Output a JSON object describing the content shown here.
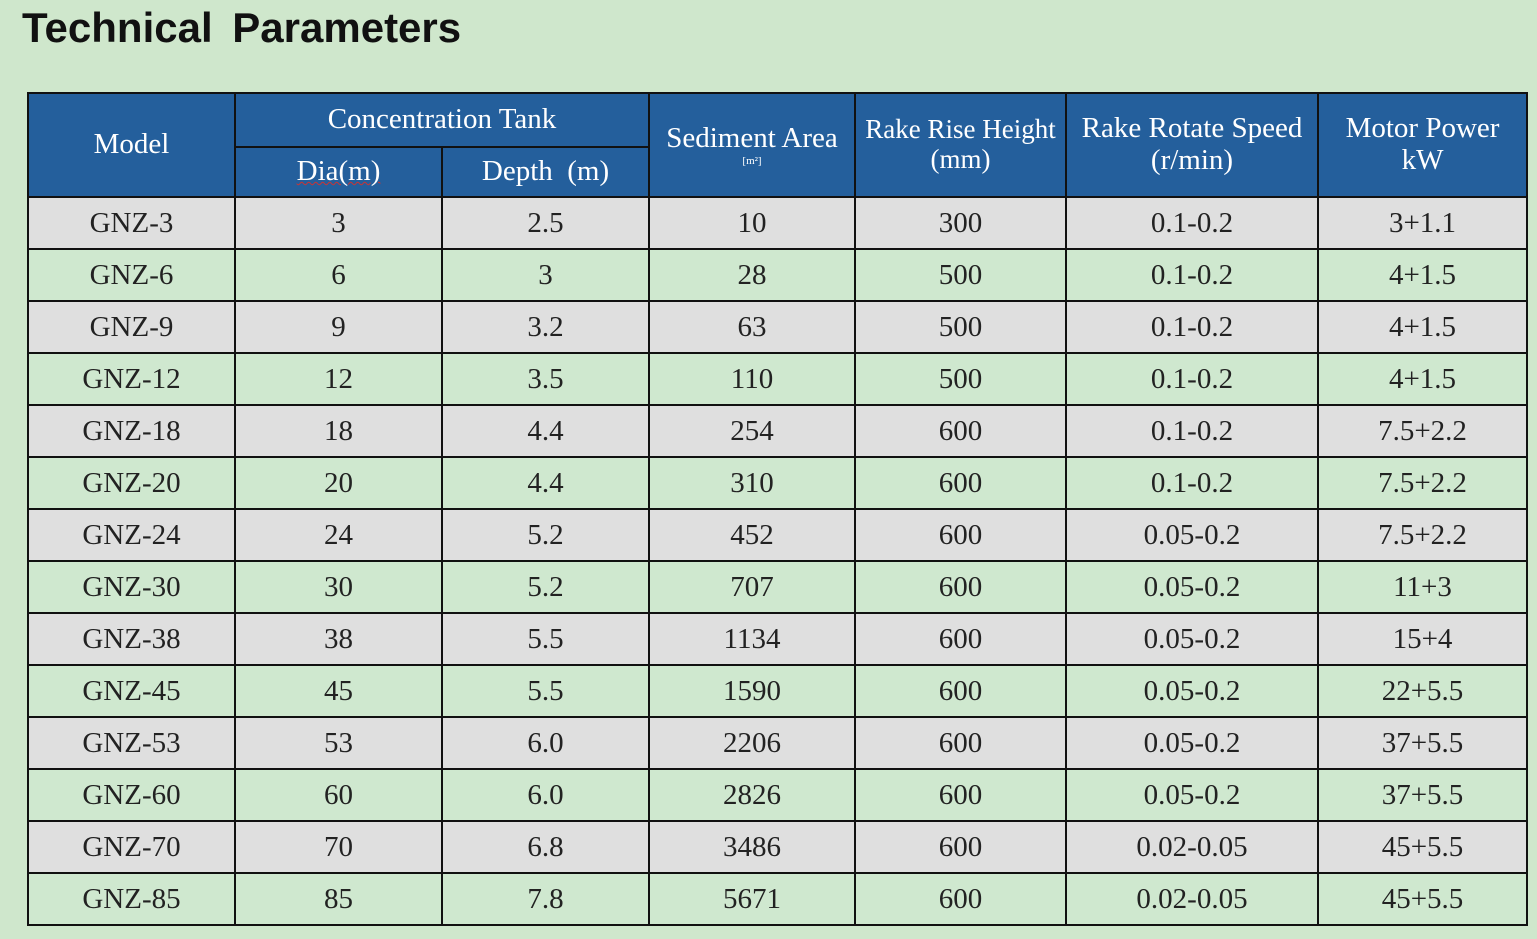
{
  "title": "Technical  Parameters",
  "colors": {
    "header_bg": "#245f9c",
    "row_gray": "#dfdfdf",
    "row_green": "#cfe8cf",
    "page_bg": "#cfe7cc"
  },
  "headers": {
    "model": "Model",
    "concentration_tank": "Concentration Tank",
    "dia": "Dia(m)",
    "depth": "Depth  (m)",
    "sediment_area": "Sediment Area",
    "sediment_unit": "[m²]",
    "rake_rise_height": "Rake Rise Height",
    "rake_rise_unit": "(mm)",
    "rake_rotate_speed": "Rake Rotate Speed",
    "rake_rotate_unit": "(r/min)",
    "motor_power": "Motor Power",
    "motor_unit": "kW"
  },
  "rows": [
    [
      "GNZ-3",
      "3",
      "2.5",
      "10",
      "300",
      "0.1-0.2",
      "3+1.1"
    ],
    [
      "GNZ-6",
      "6",
      "3",
      "28",
      "500",
      "0.1-0.2",
      "4+1.5"
    ],
    [
      "GNZ-9",
      "9",
      "3.2",
      "63",
      "500",
      "0.1-0.2",
      "4+1.5"
    ],
    [
      "GNZ-12",
      "12",
      "3.5",
      "110",
      "500",
      "0.1-0.2",
      "4+1.5"
    ],
    [
      "GNZ-18",
      "18",
      "4.4",
      "254",
      "600",
      "0.1-0.2",
      "7.5+2.2"
    ],
    [
      "GNZ-20",
      "20",
      "4.4",
      "310",
      "600",
      "0.1-0.2",
      "7.5+2.2"
    ],
    [
      "GNZ-24",
      "24",
      "5.2",
      "452",
      "600",
      "0.05-0.2",
      "7.5+2.2"
    ],
    [
      "GNZ-30",
      "30",
      "5.2",
      "707",
      "600",
      "0.05-0.2",
      "11+3"
    ],
    [
      "GNZ-38",
      "38",
      "5.5",
      "1134",
      "600",
      "0.05-0.2",
      "15+4"
    ],
    [
      "GNZ-45",
      "45",
      "5.5",
      "1590",
      "600",
      "0.05-0.2",
      "22+5.5"
    ],
    [
      "GNZ-53",
      "53",
      "6.0",
      "2206",
      "600",
      "0.05-0.2",
      "37+5.5"
    ],
    [
      "GNZ-60",
      "60",
      "6.0",
      "2826",
      "600",
      "0.05-0.2",
      "37+5.5"
    ],
    [
      "GNZ-70",
      "70",
      "6.8",
      "3486",
      "600",
      "0.02-0.05",
      "45+5.5"
    ],
    [
      "GNZ-85",
      "85",
      "7.8",
      "5671",
      "600",
      "0.02-0.05",
      "45+5.5"
    ]
  ]
}
